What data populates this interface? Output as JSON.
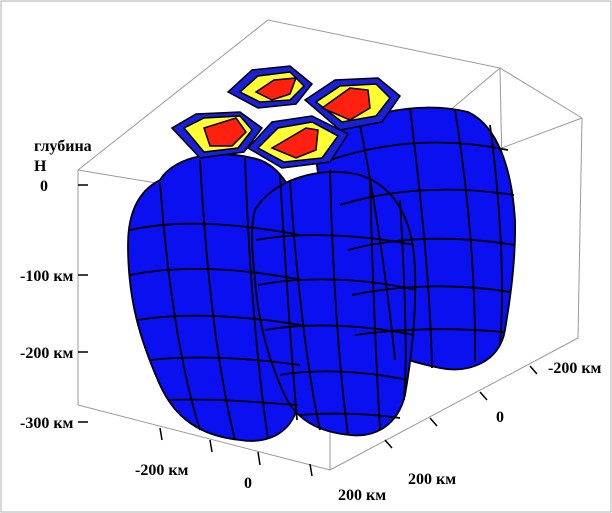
{
  "labels": {
    "depth_line1": "глубина",
    "depth_line2": "H",
    "z_ticks": [
      "0",
      "-100 км",
      "-200 км",
      "-300 км"
    ],
    "x_ticks": [
      "-200 км",
      "0",
      "200 км"
    ],
    "y_ticks": [
      "-200 км",
      "0",
      "200 км"
    ]
  },
  "colors": {
    "body_fill": "#0a10f0",
    "body_stroke": "#000000",
    "anomaly_outer": "#1a20d8",
    "anomaly_mid": "#ffff33",
    "anomaly_core": "#ff2010",
    "box_edge": "#888888"
  }
}
